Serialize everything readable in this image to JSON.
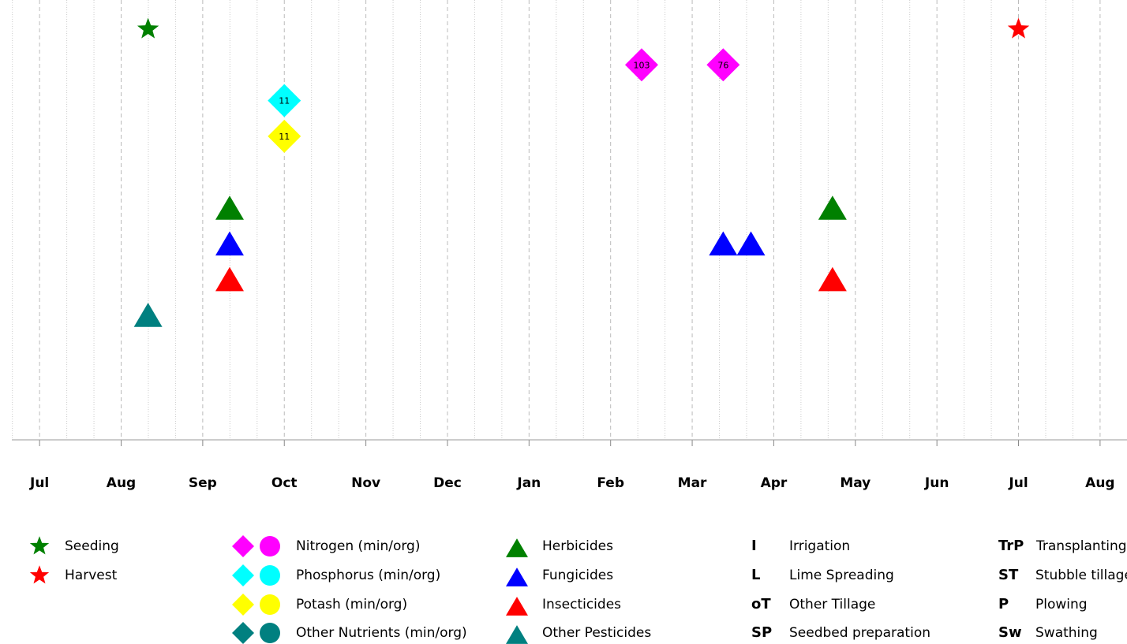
{
  "chart_data": {
    "type": "timeline",
    "xlim": [
      -0.34,
      13.33
    ],
    "xticks": [
      {
        "value": 0,
        "label": "Jul"
      },
      {
        "value": 1,
        "label": "Aug"
      },
      {
        "value": 2,
        "label": "Sep"
      },
      {
        "value": 3,
        "label": "Oct"
      },
      {
        "value": 4,
        "label": "Nov"
      },
      {
        "value": 5,
        "label": "Dec"
      },
      {
        "value": 6,
        "label": "Jan"
      },
      {
        "value": 7,
        "label": "Feb"
      },
      {
        "value": 8,
        "label": "Mar"
      },
      {
        "value": 9,
        "label": "Apr"
      },
      {
        "value": 10,
        "label": "May"
      },
      {
        "value": 11,
        "label": "Jun"
      },
      {
        "value": 12,
        "label": "Jul"
      },
      {
        "value": 13,
        "label": "Aug"
      }
    ],
    "grid": true,
    "series": [
      {
        "name": "Seeding",
        "color": "#008000",
        "marker": "star",
        "x": [
          1.33
        ]
      },
      {
        "name": "Harvest",
        "color": "#ff0000",
        "marker": "star",
        "x": [
          12.0
        ]
      },
      {
        "name": "Nitrogen (min/org)",
        "color": "#ff00ff",
        "marker": "diamond",
        "x": [
          7.38,
          8.38
        ],
        "amounts": [
          103,
          76
        ]
      },
      {
        "name": "Phosphorus (min/org)",
        "color": "#00ffff",
        "marker": "diamond",
        "x": [
          3.0
        ],
        "amounts": [
          11
        ]
      },
      {
        "name": "Potash (min/org)",
        "color": "#ffff00",
        "marker": "diamond",
        "x": [
          3.0
        ],
        "amounts": [
          11
        ]
      },
      {
        "name": "Other Nutrients (min/org)",
        "color": "#008080",
        "marker": "diamond",
        "x": []
      },
      {
        "name": "Herbicides",
        "color": "#008000",
        "marker": "triangle",
        "x": [
          2.33,
          9.72
        ]
      },
      {
        "name": "Fungicides",
        "color": "#0000ff",
        "marker": "triangle",
        "x": [
          2.33,
          8.38,
          8.72
        ]
      },
      {
        "name": "Insecticides",
        "color": "#ff0000",
        "marker": "triangle",
        "x": [
          2.33,
          9.72
        ]
      },
      {
        "name": "Other Pesticides",
        "color": "#008080",
        "marker": "triangle",
        "x": [
          1.33
        ]
      }
    ],
    "operations": [
      {
        "abbr": "I",
        "name": "Irrigation"
      },
      {
        "abbr": "L",
        "name": "Lime Spreading"
      },
      {
        "abbr": "oT",
        "name": "Other Tillage"
      },
      {
        "abbr": "SP",
        "name": "Seedbed preparation"
      },
      {
        "abbr": "TrP",
        "name": "Transplanting"
      },
      {
        "abbr": "ST",
        "name": "Stubble tillage"
      },
      {
        "abbr": "P",
        "name": "Plowing"
      },
      {
        "abbr": "Sw",
        "name": "Swathing"
      }
    ]
  }
}
